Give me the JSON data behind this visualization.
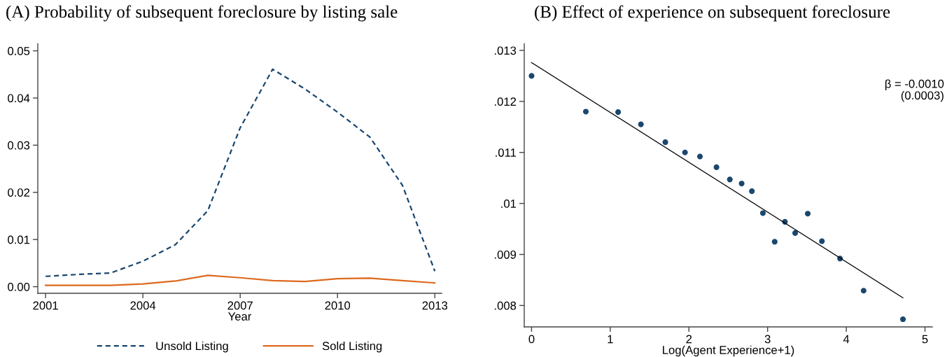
{
  "chart_data": [
    {
      "type": "line",
      "title": "(A) Probability of subsequent foreclosure by listing sale",
      "xlabel": "Year",
      "x": [
        2001,
        2002,
        2003,
        2004,
        2005,
        2006,
        2007,
        2008,
        2009,
        2010,
        2011,
        2012,
        2013
      ],
      "series": [
        {
          "name": "Unsold Listing",
          "color": "#1a476f",
          "line_style": "dashed",
          "values": [
            0.0022,
            0.0026,
            0.0029,
            0.0054,
            0.0089,
            0.0161,
            0.0337,
            0.0461,
            0.0419,
            0.037,
            0.0317,
            0.0215,
            0.0033
          ]
        },
        {
          "name": "Sold Listing",
          "color": "#dd6a1f",
          "line_style": "solid",
          "values": [
            0.0003,
            0.0003,
            0.0003,
            0.0006,
            0.0012,
            0.0024,
            0.0019,
            0.0013,
            0.0011,
            0.0017,
            0.0018,
            0.0013,
            0.0008
          ]
        }
      ],
      "xlim": [
        2000.76,
        2013.21
      ],
      "xticks": [
        2001,
        2004,
        2007,
        2010,
        2013
      ],
      "ylim": [
        -0.0014,
        0.0515
      ],
      "yticks": [
        {
          "value": 0,
          "label": "0.00"
        },
        0.01,
        0.02,
        0.03,
        0.04,
        0.05
      ],
      "grid": false,
      "legend": "bottom"
    },
    {
      "type": "scatter",
      "title": "(B) Effect of experience on subsequent foreclosure",
      "xlabel": "Log(Agent Experience+1)",
      "annotations": [
        "β = -0.0010",
        "(0.0003)"
      ],
      "series": [
        {
          "type": "scatter",
          "color": "#1a476f",
          "marker": "circle",
          "x": [
            0,
            0.69,
            1.1,
            1.39,
            1.7,
            1.95,
            2.14,
            2.35,
            2.52,
            2.67,
            2.8,
            2.94,
            3.09,
            3.22,
            3.35,
            3.51,
            3.69,
            3.92,
            4.22,
            4.72
          ],
          "values": [
            0.0125,
            0.0118,
            0.01179,
            0.01155,
            0.0112,
            0.011,
            0.01092,
            0.01071,
            0.01047,
            0.01039,
            0.01024,
            0.00981,
            0.00925,
            0.00964,
            0.00942,
            0.0098,
            0.00926,
            0.00892,
            0.00829,
            0.00773
          ]
        },
        {
          "type": "line",
          "color": "#000000",
          "line_style": "solid",
          "x": [
            0,
            4.72
          ],
          "values": [
            0.01276,
            0.00815
          ]
        }
      ],
      "xlim": [
        -0.093,
        5.093
      ],
      "xticks": [
        0,
        1,
        2,
        3,
        4,
        5
      ],
      "ylim": [
        0.00758,
        0.01313
      ],
      "yticks": [
        {
          "value": 0.013,
          "label": ".013"
        },
        {
          "value": 0.012,
          "label": ".012"
        },
        {
          "value": 0.011,
          "label": ".011"
        },
        {
          "value": 0.01,
          "label": ".01"
        },
        {
          "value": 0.009,
          "label": ".009"
        },
        {
          "value": 0.008,
          "label": ".008"
        }
      ],
      "grid": false
    }
  ]
}
